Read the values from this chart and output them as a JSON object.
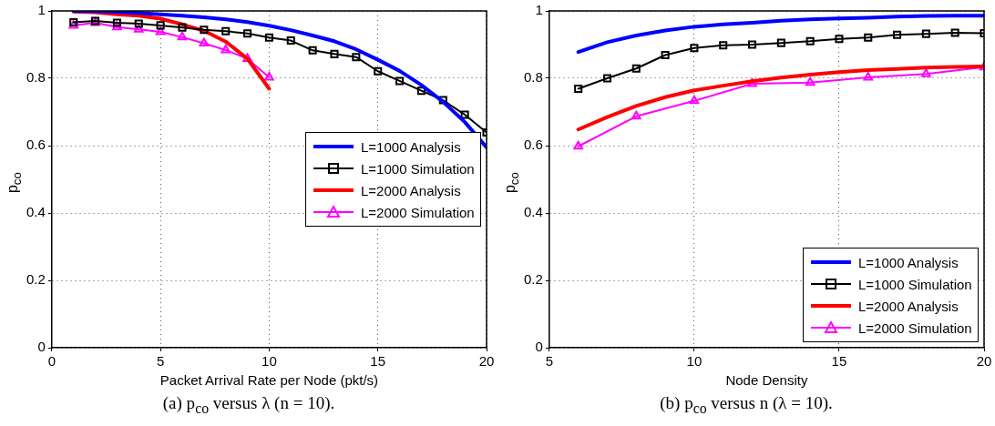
{
  "chart_data": [
    {
      "type": "line",
      "xlabel": "Packet Arrival Rate per Node (pkt/s)",
      "ylabel": "p$_{co}$",
      "annotations": [
        "(a) p$_{co}$ versus λ (n = 10)."
      ],
      "xlim": [
        0,
        20
      ],
      "xticks": [
        0,
        5,
        10,
        15,
        20
      ],
      "ylim": [
        0,
        1
      ],
      "yticks": [
        0,
        0.2,
        0.4,
        0.6,
        0.8,
        1
      ],
      "grid": true,
      "legend": "right",
      "line_style": "solid",
      "series": [
        {
          "name": "L=1000 Analysis",
          "color": "#0000ff",
          "marker": "none",
          "x": [
            1,
            2,
            3,
            4,
            5,
            6,
            7,
            8,
            9,
            10,
            11,
            12,
            13,
            14,
            15,
            16,
            17,
            18,
            19,
            20
          ],
          "values": [
            1.0,
            0.999,
            0.997,
            0.994,
            0.99,
            0.986,
            0.981,
            0.975,
            0.967,
            0.956,
            0.943,
            0.927,
            0.91,
            0.886,
            0.855,
            0.822,
            0.78,
            0.73,
            0.67,
            0.595
          ]
        },
        {
          "name": "L=1000 Simulation",
          "color": "#000000",
          "marker": "square",
          "x": [
            1,
            2,
            3,
            4,
            5,
            6,
            7,
            8,
            9,
            10,
            11,
            12,
            13,
            14,
            15,
            16,
            17,
            18,
            19,
            20
          ],
          "values": [
            0.966,
            0.97,
            0.965,
            0.962,
            0.957,
            0.951,
            0.944,
            0.94,
            0.933,
            0.921,
            0.912,
            0.883,
            0.872,
            0.863,
            0.821,
            0.792,
            0.763,
            0.735,
            0.692,
            0.639
          ]
        },
        {
          "name": "L=2000 Analysis",
          "color": "#ff0000",
          "marker": "none",
          "x": [
            1,
            2,
            3,
            4,
            5,
            6,
            7,
            8,
            9,
            10
          ],
          "values": [
            0.998,
            0.996,
            0.99,
            0.986,
            0.977,
            0.96,
            0.941,
            0.909,
            0.858,
            0.769
          ]
        },
        {
          "name": "L=2000 Simulation",
          "color": "#ff00ff",
          "marker": "triangle",
          "x": [
            1,
            2,
            3,
            4,
            5,
            6,
            7,
            8,
            9,
            10
          ],
          "values": [
            0.957,
            0.965,
            0.952,
            0.945,
            0.938,
            0.922,
            0.904,
            0.884,
            0.858,
            0.803
          ]
        }
      ]
    },
    {
      "type": "line",
      "xlabel": "Node Density",
      "ylabel": "p$_{co}$",
      "annotations": [
        "(b) p$_{co}$ versus n (λ = 10)."
      ],
      "xlim": [
        5,
        20
      ],
      "xticks": [
        5,
        10,
        15,
        20
      ],
      "ylim": [
        0,
        1
      ],
      "yticks": [
        0,
        0.2,
        0.4,
        0.6,
        0.8,
        1
      ],
      "grid": true,
      "legend": "bottom right",
      "line_style": "solid",
      "series": [
        {
          "name": "L=1000 Analysis",
          "color": "#0000ff",
          "marker": "none",
          "x": [
            6,
            7,
            8,
            9,
            10,
            11,
            12,
            13,
            14,
            15,
            16,
            17,
            18,
            19,
            20
          ],
          "values": [
            0.878,
            0.907,
            0.927,
            0.942,
            0.953,
            0.96,
            0.965,
            0.971,
            0.975,
            0.978,
            0.98,
            0.983,
            0.985,
            0.986,
            0.986
          ]
        },
        {
          "name": "L=1000 Simulation",
          "color": "#000000",
          "marker": "square",
          "x": [
            6,
            7,
            8,
            9,
            10,
            11,
            12,
            13,
            14,
            15,
            16,
            17,
            18,
            19,
            20
          ],
          "values": [
            0.769,
            0.8,
            0.829,
            0.869,
            0.89,
            0.898,
            0.9,
            0.905,
            0.91,
            0.917,
            0.921,
            0.929,
            0.932,
            0.935,
            0.934
          ]
        },
        {
          "name": "L=2000 Analysis",
          "color": "#ff0000",
          "marker": "none",
          "x": [
            6,
            7,
            8,
            9,
            10,
            11,
            12,
            13,
            14,
            15,
            16,
            17,
            18,
            19,
            20
          ],
          "values": [
            0.648,
            0.685,
            0.718,
            0.744,
            0.764,
            0.778,
            0.791,
            0.802,
            0.811,
            0.818,
            0.824,
            0.828,
            0.832,
            0.834,
            0.835
          ]
        },
        {
          "name": "L=2000 Simulation",
          "color": "#ff00ff",
          "marker": "triangle",
          "x": [
            6,
            8,
            10,
            12,
            14,
            16,
            18,
            20
          ],
          "values": [
            0.598,
            0.687,
            0.733,
            0.784,
            0.787,
            0.803,
            0.813,
            0.833
          ]
        }
      ]
    }
  ]
}
